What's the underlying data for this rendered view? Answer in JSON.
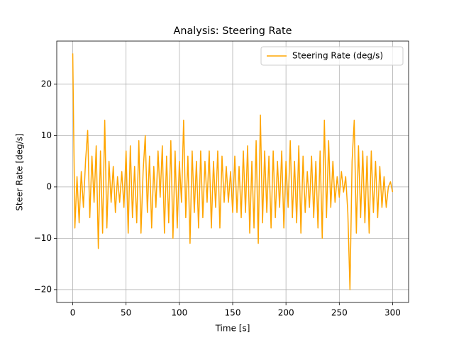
{
  "chart_data": {
    "type": "line",
    "title": "Analysis: Steering Rate",
    "xlabel": "Time [s]",
    "ylabel": "Steer Rate [deg/s]",
    "x": [
      0,
      2,
      4,
      6,
      8,
      10,
      12,
      14,
      16,
      18,
      20,
      22,
      24,
      26,
      28,
      30,
      32,
      34,
      36,
      38,
      40,
      42,
      44,
      46,
      48,
      50,
      52,
      54,
      56,
      58,
      60,
      62,
      64,
      66,
      68,
      70,
      72,
      74,
      76,
      78,
      80,
      82,
      84,
      86,
      88,
      90,
      92,
      94,
      96,
      98,
      100,
      102,
      104,
      106,
      108,
      110,
      112,
      114,
      116,
      118,
      120,
      122,
      124,
      126,
      128,
      130,
      132,
      134,
      136,
      138,
      140,
      142,
      144,
      146,
      148,
      150,
      152,
      154,
      156,
      158,
      160,
      162,
      164,
      166,
      168,
      170,
      172,
      174,
      176,
      178,
      180,
      182,
      184,
      186,
      188,
      190,
      192,
      194,
      196,
      198,
      200,
      202,
      204,
      206,
      208,
      210,
      212,
      214,
      216,
      218,
      220,
      222,
      224,
      226,
      228,
      230,
      232,
      234,
      236,
      238,
      240,
      242,
      244,
      246,
      248,
      250,
      252,
      254,
      256,
      258,
      260,
      262,
      264,
      266,
      268,
      270,
      272,
      274,
      276,
      278,
      280,
      282,
      284,
      286,
      288,
      290,
      292,
      294,
      296,
      298,
      300
    ],
    "series": [
      {
        "name": "Steering Rate (deg/s)",
        "color": "#ffa500",
        "values": [
          26,
          -8,
          2,
          -7,
          3,
          -4,
          5,
          11,
          -6,
          6,
          -3,
          8,
          -12,
          7,
          -9,
          13,
          -8,
          5,
          -3,
          4,
          -5,
          2,
          -3,
          3,
          -4,
          7,
          -9,
          8,
          -6,
          4,
          -7,
          9,
          -9,
          3,
          10,
          -5,
          6,
          -8,
          4,
          -4,
          7,
          -2,
          8,
          -9,
          6,
          -7,
          9,
          -10,
          7,
          -8,
          5,
          -3,
          13,
          -6,
          6,
          -11,
          7,
          -5,
          5,
          -8,
          7,
          -6,
          5,
          -3,
          7,
          -8,
          5,
          -4,
          7,
          -8,
          6,
          -3,
          4,
          -3,
          3,
          -5,
          6,
          -5,
          4,
          -6,
          7,
          -5,
          8,
          -9,
          5,
          -8,
          9,
          -11,
          14,
          -7,
          7,
          -5,
          6,
          -8,
          7,
          -6,
          5,
          -4,
          7,
          -8,
          5,
          -4,
          9,
          -6,
          5,
          -7,
          8,
          -9,
          6,
          -5,
          3,
          -4,
          6,
          -6,
          5,
          -8,
          7,
          -10,
          13,
          -6,
          9,
          -4,
          5,
          -3,
          2,
          -2,
          3,
          -1,
          2,
          -5,
          -20,
          5,
          13,
          -9,
          8,
          -6,
          7,
          -7,
          6,
          -9,
          7,
          -5,
          5,
          -6,
          4,
          -4,
          2,
          -4,
          0,
          1,
          -1
        ]
      }
    ],
    "xlim": [
      -15,
      315
    ],
    "ylim": [
      -22.5,
      28.4
    ],
    "xticks": [
      0,
      50,
      100,
      150,
      200,
      250,
      300
    ],
    "yticks": [
      {
        "value": -20,
        "label": "−20"
      },
      {
        "value": -10,
        "label": "−10"
      },
      0,
      10,
      20
    ],
    "grid": true,
    "legend": "upper right"
  }
}
